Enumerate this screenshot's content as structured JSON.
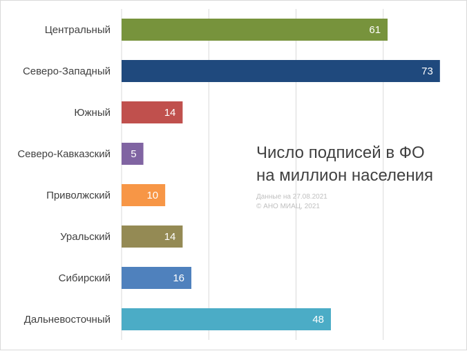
{
  "chart_data": {
    "type": "bar",
    "orientation": "horizontal",
    "title_lines": [
      "Число подписей в ФО",
      "на миллион населения"
    ],
    "note_lines": [
      "Данные на 27.08.2021",
      "© АНО МИАЦ, 2021"
    ],
    "categories": [
      "Центральный",
      "Северо-Западный",
      "Южный",
      "Северо-Кавказский",
      "Приволжский",
      "Уральский",
      "Сибирский",
      "Дальневосточный"
    ],
    "values": [
      61,
      73,
      14,
      5,
      10,
      14,
      16,
      48
    ],
    "colors": [
      "#77933c",
      "#1f497d",
      "#c0504d",
      "#8064a2",
      "#f79646",
      "#948a54",
      "#4f81bd",
      "#4bacc6"
    ],
    "xlim": [
      0,
      80
    ],
    "grid": true,
    "gridline_values": [
      0,
      20,
      40,
      60,
      80
    ],
    "gridline_color": "#d9d9d9",
    "data_labels": true
  }
}
